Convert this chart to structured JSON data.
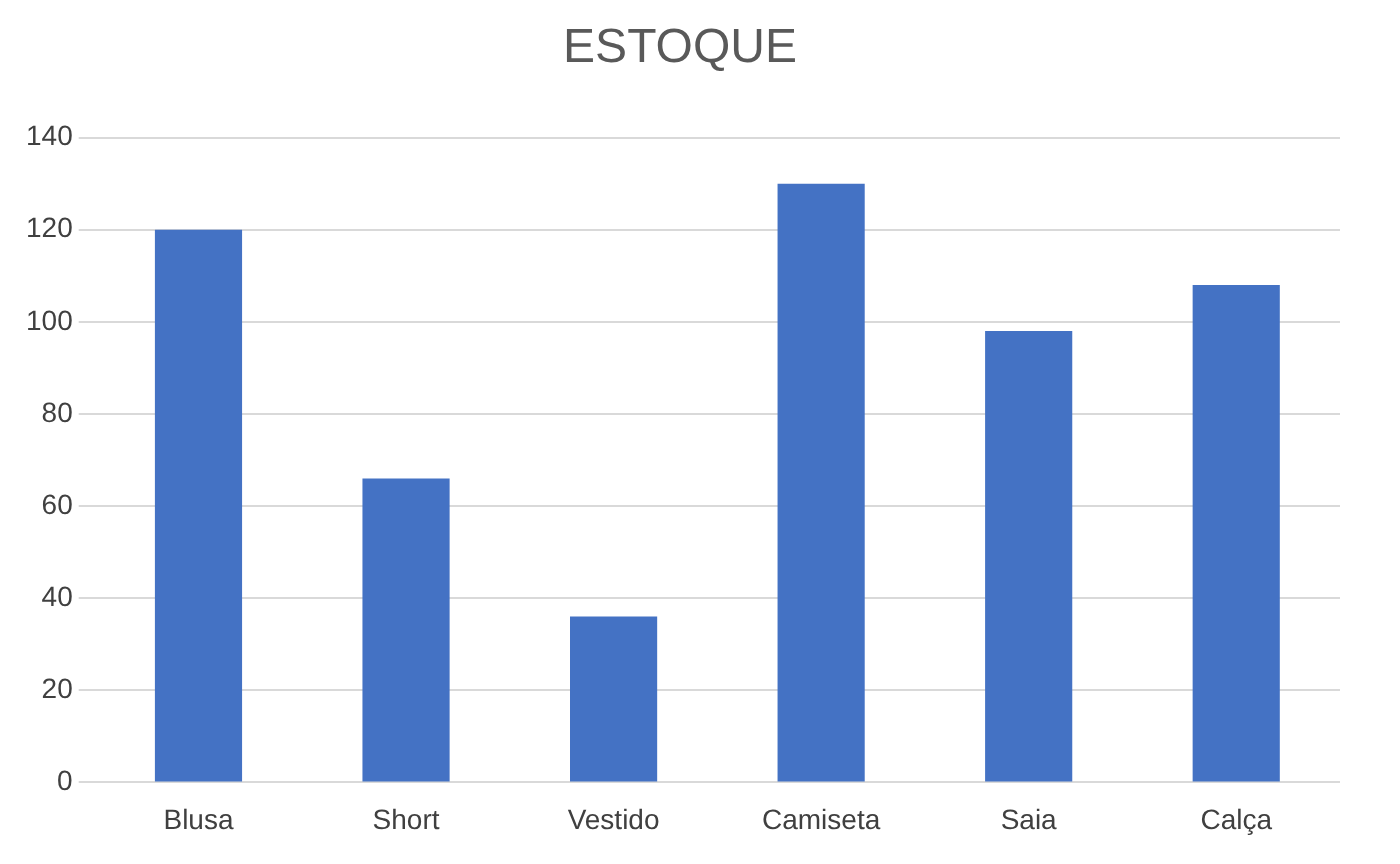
{
  "chart_data": {
    "type": "bar",
    "title": "ESTOQUE",
    "categories": [
      "Blusa",
      "Short",
      "Vestido",
      "Camiseta",
      "Saia",
      "Calça"
    ],
    "values": [
      120,
      66,
      36,
      130,
      98,
      108
    ],
    "color": "#4472c4",
    "ylim": [
      0,
      140
    ],
    "yticks": [
      0,
      20,
      40,
      60,
      80,
      100,
      120,
      140
    ],
    "grid": "y"
  }
}
